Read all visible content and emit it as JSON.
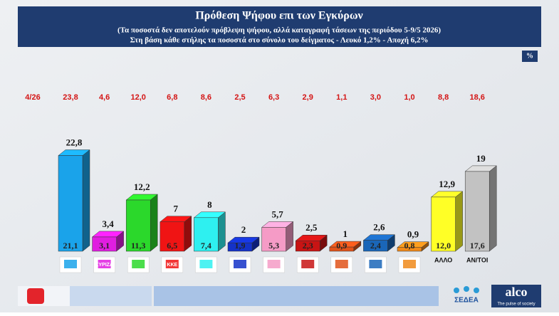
{
  "chart_data": {
    "type": "bar3d",
    "title": "Πρόθεση Ψήφου επι των Εγκύρων",
    "subtitle": [
      "(Τα ποσοστά δεν αποτελούν πρόβλεψη ψήφου, αλλά καταγραφή τάσεων της περιόδου  5-9/5 2026)",
      "Στη βάση κάθε στήλης τα ποσοστά στο σύνολο του δείγματος - Λευκό 1,2% - Αποχή 6,2%"
    ],
    "unit": "%",
    "categories": [
      null,
      "ΣΥΡΙΖΑ",
      null,
      "ΚΚΕ",
      null,
      null,
      null,
      null,
      null,
      null,
      null,
      "ΑΛΛΟ",
      "ΑΝ/ΤΟΙ"
    ],
    "colors": [
      "#1aa3ea",
      "#e01ee0",
      "#2bd82b",
      "#f01414",
      "#2ef0f0",
      "#1432c8",
      "#f59bc6",
      "#c81414",
      "#e0531a",
      "#1a66b8",
      "#f08a1a",
      "#ffff26",
      "#c2c2c2"
    ],
    "values": [
      22.8,
      3.4,
      12.2,
      7,
      8,
      2,
      5.7,
      2.5,
      1,
      2.6,
      0.9,
      12.9,
      19
    ],
    "value_labels": [
      "22,8",
      "3,4",
      "12,2",
      "7",
      "8",
      "2",
      "5,7",
      "2,5",
      "1",
      "2,6",
      "0,9",
      "12,9",
      "19"
    ],
    "inner_values": [
      21.1,
      3.1,
      11.3,
      6.5,
      7.4,
      1.9,
      5.3,
      2.3,
      0.9,
      2.4,
      0.8,
      12.0,
      17.6
    ],
    "inner_value_labels": [
      "21,1",
      "3,1",
      "11,3",
      "6,5",
      "7,4",
      "1,9",
      "5,3",
      "2,3",
      "0,9",
      "2,4",
      "0,8",
      "12,0",
      "17,6"
    ],
    "previous_label": "4/26",
    "previous_values": [
      23.8,
      4.6,
      12.0,
      6.8,
      8.6,
      2.5,
      6.3,
      2.9,
      1.1,
      3.0,
      1.0,
      8.8,
      18.6
    ],
    "previous_value_labels": [
      "23,8",
      "4,6",
      "12,0",
      "6,8",
      "8,6",
      "2,5",
      "6,3",
      "2,9",
      "1,1",
      "3,0",
      "1,0",
      "8,8",
      "18,6"
    ]
  },
  "footer": {
    "brand": "alco",
    "tagline": "The pulse of society",
    "member": "ΣΕΔΕΑ"
  }
}
